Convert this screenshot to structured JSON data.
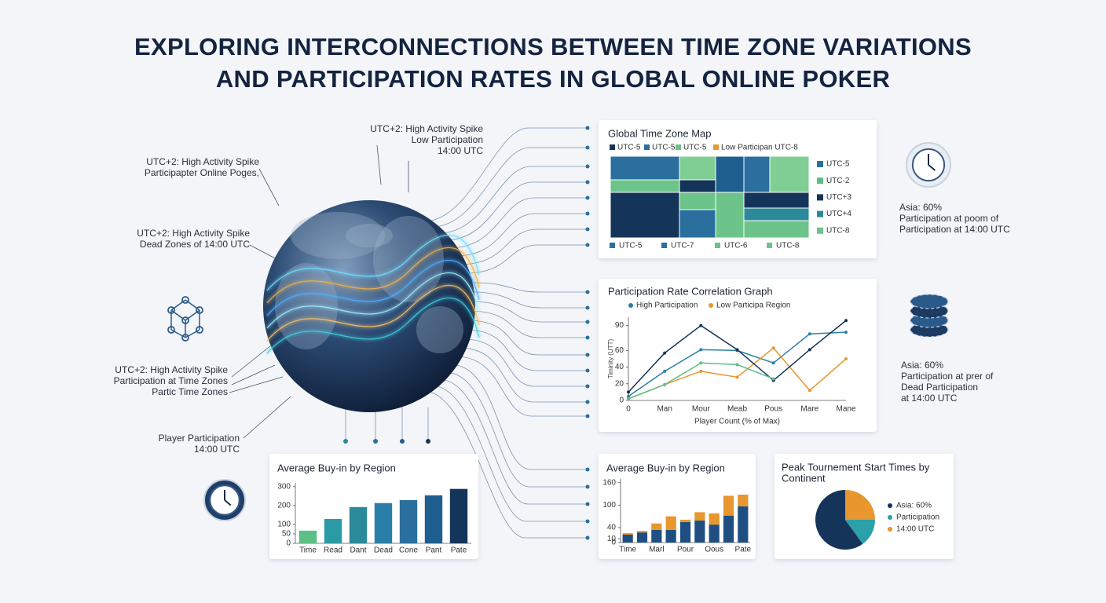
{
  "title": [
    "EXPLORING INTERCONNECTIONS BETWEEN TIME ZONE VARIATIONS",
    "AND PARTICIPATION RATES IN GLOBAL ONLINE POKER"
  ],
  "annotations": [
    {
      "lines": [
        "UTC+2: High Activity Spike",
        "Low Participation",
        "14:00 UTC"
      ]
    },
    {
      "lines": [
        "UTC+2: High Activity Spike",
        "Participapter Online Poges,"
      ]
    },
    {
      "lines": [
        "UTC+2: High Activity Spike",
        "Dead Zones of 14:00 UTC"
      ]
    },
    {
      "lines": [
        "UTC+2: High Activity Spike",
        "Participation at Time Zones",
        "Partic Time Zones"
      ]
    },
    {
      "lines": [
        "Player Participation",
        "14:00 UTC"
      ]
    },
    {
      "lines": [
        "Asia: 60%",
        "Participation at poom of",
        "Participation at 14:00 UTC"
      ]
    },
    {
      "lines": [
        "Asia: 60%",
        "Participation at prer of",
        "Dead Participation",
        "at 14:00 UTC"
      ]
    }
  ],
  "chart_data": [
    {
      "type": "tile-map",
      "title": "Global Time Zone Map",
      "legend": [
        {
          "name": "UTC-5",
          "color": "#15345a"
        },
        {
          "name": "UTC-5",
          "color": "#2a6f9e"
        },
        {
          "name": "UTC-5",
          "color": "#6cc48a"
        },
        {
          "name": "Low Participan UTC-8",
          "color": "#e8962e"
        }
      ],
      "side_labels": [
        {
          "name": "UTC-5",
          "color": "#2a6f9e"
        },
        {
          "name": "UTC-2",
          "color": "#5cbf86"
        },
        {
          "name": "UTC+3",
          "color": "#15345a"
        },
        {
          "name": "UTC+4",
          "color": "#2a8a9a"
        },
        {
          "name": "UTC-8",
          "color": "#6cc48a"
        }
      ],
      "bottom_labels": [
        {
          "name": "UTC-5",
          "color": "#2a6f9e"
        },
        {
          "name": "UTC-7",
          "color": "#2a6f9e"
        },
        {
          "name": "UTC-6",
          "color": "#6cc48a"
        },
        {
          "name": "UTC-8",
          "color": "#6cc48a"
        }
      ]
    },
    {
      "type": "line",
      "title": "Participation Rate Correlation Graph",
      "x_label": "Player Count (% of Max)",
      "y_label": "Timinity (UTT)",
      "categories": [
        "0",
        "Man",
        "Mour",
        "Meab",
        "Pous",
        "Mare",
        "Mane"
      ],
      "series": [
        {
          "name": "High Participation",
          "color": "#2a7fa8",
          "values": [
            5,
            35,
            61,
            60,
            45,
            80,
            82
          ]
        },
        {
          "name": "Low Participa Region",
          "color": "#e8962e",
          "values": [
            2,
            19,
            35,
            28,
            63,
            12,
            50
          ]
        },
        {
          "color": "#15345a",
          "values": [
            10,
            57,
            90,
            61,
            24,
            61,
            96
          ]
        },
        {
          "color": "#5cbf86",
          "values": [
            2,
            19,
            45,
            43,
            26,
            null,
            null
          ]
        }
      ],
      "ylim": [
        0,
        100
      ],
      "yticks": [
        0,
        20,
        40,
        60,
        90
      ]
    },
    {
      "type": "bar",
      "title": "Average Buy-in by Region",
      "categories": [
        "Time",
        "Read",
        "Dant",
        "Dead",
        "Cone",
        "Pant",
        "Pate"
      ],
      "values": [
        67,
        129,
        192,
        213,
        229,
        254,
        288
      ],
      "colors": [
        "#5cbf86",
        "#2a9aa5",
        "#2a8a9a",
        "#2a7fa8",
        "#2a6f9e",
        "#1f5f8f",
        "#15345a"
      ],
      "ylim": [
        0,
        320
      ],
      "yticks": [
        0,
        50,
        100,
        200,
        300
      ]
    },
    {
      "type": "stacked-bar",
      "title": "Average Buy-in by Region",
      "categories": [
        "Time",
        null,
        "Marl",
        null,
        "Pour",
        null,
        "Oous",
        null,
        "Pate"
      ],
      "series": [
        {
          "color": "#1f4f82",
          "values": [
            21,
            27,
            34,
            34,
            55,
            59,
            48,
            72,
            97
          ]
        },
        {
          "color": "#e8962e",
          "values": [
            4,
            4,
            17,
            36,
            6,
            22,
            30,
            53,
            31
          ]
        }
      ],
      "ylim": [
        0,
        170
      ],
      "yticks": [
        0,
        10,
        40,
        100,
        160
      ]
    },
    {
      "type": "pie",
      "title": [
        "Peak Tournement Start Times by",
        "Continent"
      ],
      "categories": [
        "Asia: 60%",
        "Participation",
        "14:00 UTC"
      ],
      "values": [
        60,
        15,
        25
      ],
      "colors": [
        "#15345a",
        "#2aa0a8",
        "#e8962e"
      ]
    }
  ]
}
